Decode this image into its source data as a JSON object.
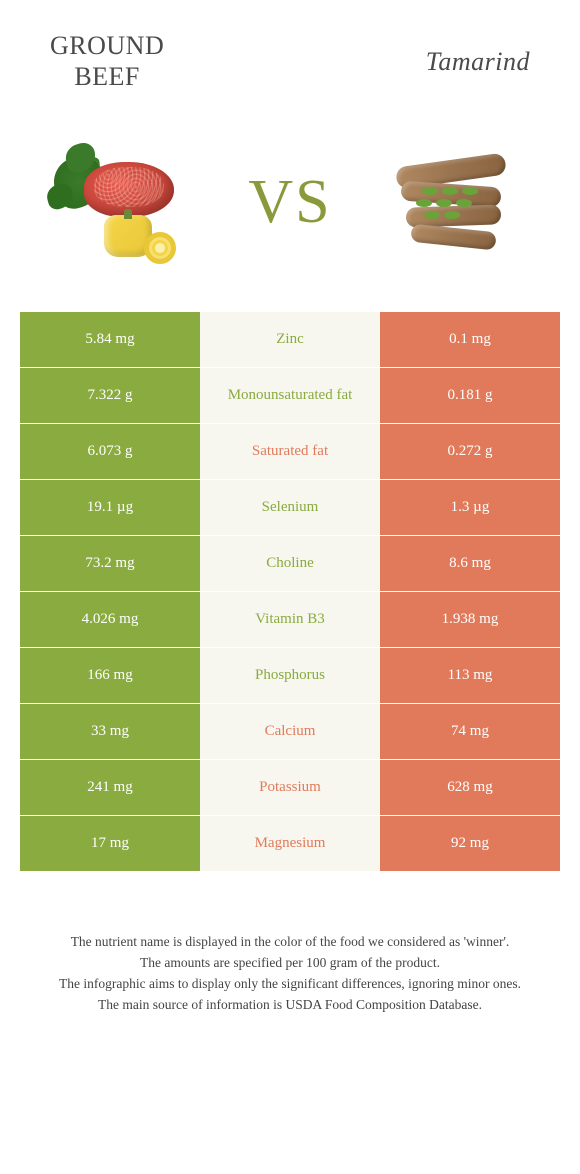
{
  "colors": {
    "green": "#8aab3f",
    "orange": "#e17a5a",
    "mid_bg": "#f7f7f0",
    "vs_color": "#8a9a3b",
    "text_white": "#ffffff"
  },
  "header": {
    "left_title": "GROUND\nBEEF",
    "right_title": "Tamarind",
    "vs_label": "VS"
  },
  "images": {
    "left_alt": "ground-beef-with-parsley-and-pepper",
    "right_alt": "tamarind-pods-with-leaves"
  },
  "table": {
    "left_winner_color": "#8aab3f",
    "right_winner_color": "#e17a5a",
    "rows": [
      {
        "nutrient": "Zinc",
        "left": "5.84 mg",
        "right": "0.1 mg",
        "winner": "left"
      },
      {
        "nutrient": "Monounsaturated fat",
        "left": "7.322 g",
        "right": "0.181 g",
        "winner": "left"
      },
      {
        "nutrient": "Saturated fat",
        "left": "6.073 g",
        "right": "0.272 g",
        "winner": "right"
      },
      {
        "nutrient": "Selenium",
        "left": "19.1 µg",
        "right": "1.3 µg",
        "winner": "left"
      },
      {
        "nutrient": "Choline",
        "left": "73.2 mg",
        "right": "8.6 mg",
        "winner": "left"
      },
      {
        "nutrient": "Vitamin B3",
        "left": "4.026 mg",
        "right": "1.938 mg",
        "winner": "left"
      },
      {
        "nutrient": "Phosphorus",
        "left": "166 mg",
        "right": "113 mg",
        "winner": "left"
      },
      {
        "nutrient": "Calcium",
        "left": "33 mg",
        "right": "74 mg",
        "winner": "right"
      },
      {
        "nutrient": "Potassium",
        "left": "241 mg",
        "right": "628 mg",
        "winner": "right"
      },
      {
        "nutrient": "Magnesium",
        "left": "17 mg",
        "right": "92 mg",
        "winner": "right"
      }
    ]
  },
  "footnotes": [
    "The nutrient name is displayed in the color of the food we considered as 'winner'.",
    "The amounts are specified per 100 gram of the product.",
    "The infographic aims to display only the significant differences, ignoring minor ones.",
    "The main source of information is USDA Food Composition Database."
  ]
}
